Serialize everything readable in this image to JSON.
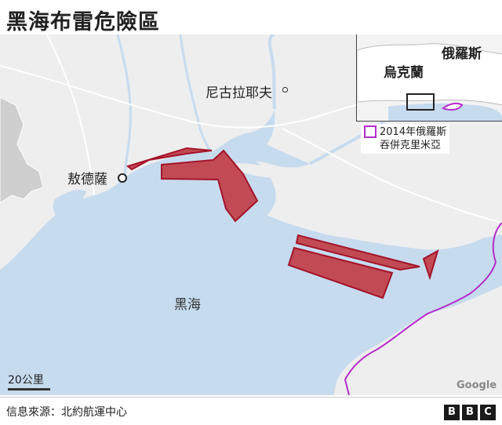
{
  "title": "黑海布雷危險區",
  "labels": {
    "nikolaev": "尼古拉耶夫",
    "odessa": "敖德薩",
    "black_sea": "黑海"
  },
  "inset": {
    "russia": "俄羅斯",
    "ukraine": "烏克蘭"
  },
  "legend": {
    "crimea": "2014年俄羅斯\n吞併克里米亞"
  },
  "scale": "20公里",
  "attribution": "Google",
  "footer": {
    "source": "信息來源：北約航運中心",
    "logo_letters": [
      "B",
      "B",
      "C"
    ]
  },
  "colors": {
    "sea": "#c7dbef",
    "land": "#eeeeee",
    "danger_fill": "#c14a55",
    "danger_stroke": "#a3142a",
    "crimea_border": "#b32cc9",
    "moldova": "#cfcfcf"
  }
}
